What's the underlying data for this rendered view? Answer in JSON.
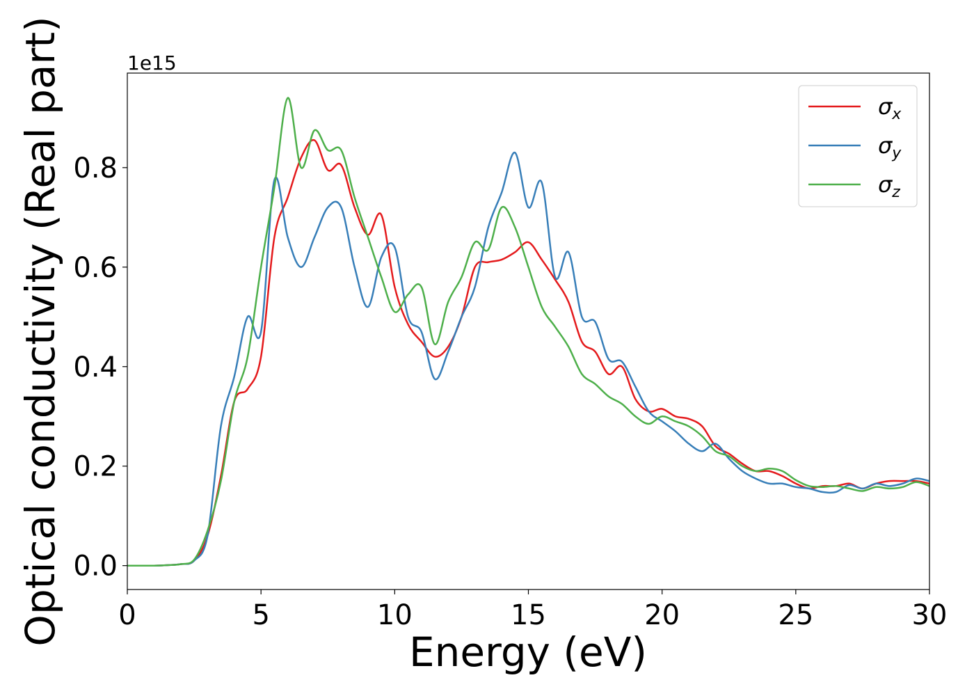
{
  "chart_data": {
    "type": "line",
    "xlabel": "Energy (eV)",
    "ylabel": "Optical conductivity (Real part)",
    "y_offset_text": "1e15",
    "x": [
      0,
      0.5,
      1,
      1.5,
      2,
      2.5,
      3,
      3.5,
      4,
      4.5,
      5,
      5.5,
      6,
      6.5,
      7,
      7.5,
      8,
      8.5,
      9,
      9.5,
      10,
      10.5,
      11,
      11.5,
      12,
      12.5,
      13,
      13.5,
      14,
      14.5,
      15,
      15.5,
      16,
      16.5,
      17,
      17.5,
      18,
      18.5,
      19,
      19.5,
      20,
      20.5,
      21,
      21.5,
      22,
      22.5,
      23,
      23.5,
      24,
      24.5,
      25,
      25.5,
      26,
      26.5,
      27,
      27.5,
      28,
      28.5,
      29,
      29.5,
      30
    ],
    "series": [
      {
        "name": "σx",
        "color": "#e41a1c",
        "values": [
          0,
          0,
          0,
          0.001,
          0.003,
          0.01,
          0.06,
          0.18,
          0.33,
          0.355,
          0.42,
          0.66,
          0.74,
          0.82,
          0.855,
          0.795,
          0.805,
          0.72,
          0.665,
          0.705,
          0.56,
          0.485,
          0.45,
          0.42,
          0.44,
          0.5,
          0.6,
          0.61,
          0.615,
          0.63,
          0.65,
          0.615,
          0.575,
          0.53,
          0.45,
          0.43,
          0.385,
          0.4,
          0.335,
          0.31,
          0.315,
          0.3,
          0.295,
          0.28,
          0.24,
          0.225,
          0.205,
          0.19,
          0.19,
          0.18,
          0.165,
          0.155,
          0.16,
          0.16,
          0.165,
          0.155,
          0.165,
          0.17,
          0.17,
          0.17,
          0.165
        ]
      },
      {
        "name": "σy",
        "color": "#377eb8",
        "values": [
          0,
          0,
          0,
          0.001,
          0.003,
          0.01,
          0.06,
          0.28,
          0.38,
          0.5,
          0.47,
          0.775,
          0.66,
          0.6,
          0.66,
          0.72,
          0.72,
          0.6,
          0.52,
          0.62,
          0.64,
          0.5,
          0.47,
          0.375,
          0.43,
          0.5,
          0.56,
          0.68,
          0.75,
          0.83,
          0.72,
          0.77,
          0.58,
          0.63,
          0.5,
          0.49,
          0.415,
          0.41,
          0.36,
          0.31,
          0.29,
          0.27,
          0.245,
          0.23,
          0.245,
          0.215,
          0.19,
          0.175,
          0.165,
          0.165,
          0.158,
          0.155,
          0.148,
          0.148,
          0.162,
          0.155,
          0.165,
          0.16,
          0.165,
          0.175,
          0.17
        ]
      },
      {
        "name": "σz",
        "color": "#4daf4a",
        "values": [
          0,
          0,
          0,
          0.001,
          0.003,
          0.012,
          0.07,
          0.17,
          0.33,
          0.42,
          0.6,
          0.76,
          0.94,
          0.8,
          0.875,
          0.835,
          0.835,
          0.74,
          0.66,
          0.58,
          0.51,
          0.545,
          0.56,
          0.445,
          0.53,
          0.58,
          0.65,
          0.635,
          0.72,
          0.68,
          0.6,
          0.52,
          0.48,
          0.44,
          0.385,
          0.365,
          0.34,
          0.325,
          0.3,
          0.285,
          0.3,
          0.29,
          0.28,
          0.26,
          0.23,
          0.22,
          0.2,
          0.19,
          0.195,
          0.19,
          0.172,
          0.16,
          0.158,
          0.16,
          0.155,
          0.15,
          0.158,
          0.155,
          0.158,
          0.168,
          0.16
        ]
      }
    ],
    "xlim": [
      0,
      30
    ],
    "xticks": [
      0,
      5,
      10,
      15,
      20,
      25,
      30
    ],
    "ylim": [
      -0.048,
      0.99
    ],
    "yticks": [
      {
        "value": 0,
        "label": "0.0"
      },
      0.2,
      0.4,
      0.6,
      0.8
    ],
    "grid": false,
    "legend": "upper right"
  }
}
